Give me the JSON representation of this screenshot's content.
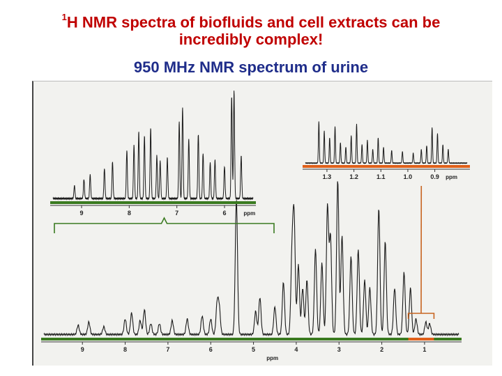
{
  "title": {
    "sup": "1",
    "line1": "H NMR spectra of biofluids and cell extracts can be",
    "line2": "incredibly complex!",
    "line3": "950 MHz NMR spectrum of urine"
  },
  "colors": {
    "title_red": "#c00000",
    "title_blue": "#1f2d8a",
    "axis_green": "#3a7a20",
    "axis_orange": "#e0601a",
    "bracket_orange": "#c86420",
    "bracket_green": "#3a7a20"
  },
  "chart_data": [
    {
      "name": "main spectrum",
      "type": "line",
      "xlabel": "ppm",
      "xlim": [
        9.9,
        0.2
      ],
      "x_reversed": true,
      "ticks": [
        9,
        8,
        7,
        6,
        5,
        4,
        3,
        2,
        1
      ],
      "tick_labels": [
        "9",
        "8",
        "7",
        "6",
        "5",
        "4",
        "3",
        "2",
        "1"
      ],
      "peaks": [
        {
          "x": 9.1,
          "h": 0.06
        },
        {
          "x": 8.85,
          "h": 0.08
        },
        {
          "x": 8.5,
          "h": 0.05
        },
        {
          "x": 8.0,
          "h": 0.1
        },
        {
          "x": 7.85,
          "h": 0.14
        },
        {
          "x": 7.65,
          "h": 0.09
        },
        {
          "x": 7.55,
          "h": 0.16
        },
        {
          "x": 7.4,
          "h": 0.07
        },
        {
          "x": 7.2,
          "h": 0.07
        },
        {
          "x": 6.9,
          "h": 0.09
        },
        {
          "x": 6.55,
          "h": 0.1
        },
        {
          "x": 6.2,
          "h": 0.12
        },
        {
          "x": 6.0,
          "h": 0.1
        },
        {
          "x": 5.85,
          "h": 0.2
        },
        {
          "x": 5.8,
          "h": 0.17
        },
        {
          "x": 5.4,
          "h": 0.88
        },
        {
          "x": 4.95,
          "h": 0.15
        },
        {
          "x": 4.85,
          "h": 0.24
        },
        {
          "x": 4.5,
          "h": 0.18
        },
        {
          "x": 4.3,
          "h": 0.34
        },
        {
          "x": 4.1,
          "h": 0.5
        },
        {
          "x": 4.05,
          "h": 0.74
        },
        {
          "x": 3.95,
          "h": 0.45
        },
        {
          "x": 3.85,
          "h": 0.3
        },
        {
          "x": 3.75,
          "h": 0.35
        },
        {
          "x": 3.55,
          "h": 0.55
        },
        {
          "x": 3.4,
          "h": 0.46
        },
        {
          "x": 3.27,
          "h": 0.83
        },
        {
          "x": 3.2,
          "h": 0.63
        },
        {
          "x": 3.03,
          "h": 1.0
        },
        {
          "x": 2.93,
          "h": 0.64
        },
        {
          "x": 2.72,
          "h": 0.5
        },
        {
          "x": 2.55,
          "h": 0.55
        },
        {
          "x": 2.4,
          "h": 0.35
        },
        {
          "x": 2.28,
          "h": 0.3
        },
        {
          "x": 2.07,
          "h": 0.82
        },
        {
          "x": 1.92,
          "h": 0.6
        },
        {
          "x": 1.7,
          "h": 0.3
        },
        {
          "x": 1.48,
          "h": 0.4
        },
        {
          "x": 1.33,
          "h": 0.3
        },
        {
          "x": 1.2,
          "h": 0.1
        },
        {
          "x": 0.97,
          "h": 0.08
        },
        {
          "x": 0.88,
          "h": 0.07
        }
      ]
    },
    {
      "name": "inset aromatic",
      "type": "line",
      "xlabel": "ppm",
      "xlim": [
        9.6,
        5.4
      ],
      "x_reversed": true,
      "ticks": [
        9,
        8,
        7,
        6
      ],
      "tick_labels": [
        "9",
        "8",
        "7",
        "6"
      ],
      "peaks": [
        {
          "x": 9.15,
          "h": 0.12
        },
        {
          "x": 8.95,
          "h": 0.18
        },
        {
          "x": 8.82,
          "h": 0.22
        },
        {
          "x": 8.52,
          "h": 0.28
        },
        {
          "x": 8.35,
          "h": 0.34
        },
        {
          "x": 8.05,
          "h": 0.45
        },
        {
          "x": 7.9,
          "h": 0.5
        },
        {
          "x": 7.8,
          "h": 0.62
        },
        {
          "x": 7.68,
          "h": 0.58
        },
        {
          "x": 7.55,
          "h": 0.66
        },
        {
          "x": 7.42,
          "h": 0.4
        },
        {
          "x": 7.35,
          "h": 0.35
        },
        {
          "x": 7.2,
          "h": 0.38
        },
        {
          "x": 6.95,
          "h": 0.72
        },
        {
          "x": 6.88,
          "h": 0.85
        },
        {
          "x": 6.75,
          "h": 0.55
        },
        {
          "x": 6.55,
          "h": 0.6
        },
        {
          "x": 6.45,
          "h": 0.42
        },
        {
          "x": 6.3,
          "h": 0.33
        },
        {
          "x": 6.2,
          "h": 0.36
        },
        {
          "x": 6.0,
          "h": 0.3
        },
        {
          "x": 5.85,
          "h": 0.95
        },
        {
          "x": 5.8,
          "h": 1.0
        },
        {
          "x": 5.65,
          "h": 0.4
        }
      ]
    },
    {
      "name": "inset aliphatic",
      "type": "line",
      "xlabel": "ppm",
      "xlim": [
        1.38,
        0.78
      ],
      "x_reversed": true,
      "ticks": [
        1.3,
        1.2,
        1.1,
        1.0,
        0.9
      ],
      "tick_labels": [
        "1.3",
        "1.2",
        "1.1",
        "1.0",
        "0.9"
      ],
      "peaks": [
        {
          "x": 1.33,
          "h": 0.9
        },
        {
          "x": 1.31,
          "h": 0.7
        },
        {
          "x": 1.29,
          "h": 0.55
        },
        {
          "x": 1.27,
          "h": 0.8
        },
        {
          "x": 1.25,
          "h": 0.45
        },
        {
          "x": 1.23,
          "h": 0.35
        },
        {
          "x": 1.21,
          "h": 0.6
        },
        {
          "x": 1.19,
          "h": 0.85
        },
        {
          "x": 1.17,
          "h": 0.4
        },
        {
          "x": 1.15,
          "h": 0.5
        },
        {
          "x": 1.13,
          "h": 0.3
        },
        {
          "x": 1.11,
          "h": 0.55
        },
        {
          "x": 1.09,
          "h": 0.35
        },
        {
          "x": 1.06,
          "h": 0.28
        },
        {
          "x": 1.02,
          "h": 0.25
        },
        {
          "x": 0.98,
          "h": 0.22
        },
        {
          "x": 0.95,
          "h": 0.3
        },
        {
          "x": 0.93,
          "h": 0.38
        },
        {
          "x": 0.91,
          "h": 0.78
        },
        {
          "x": 0.89,
          "h": 0.65
        },
        {
          "x": 0.87,
          "h": 0.4
        },
        {
          "x": 0.85,
          "h": 0.3
        }
      ]
    }
  ]
}
